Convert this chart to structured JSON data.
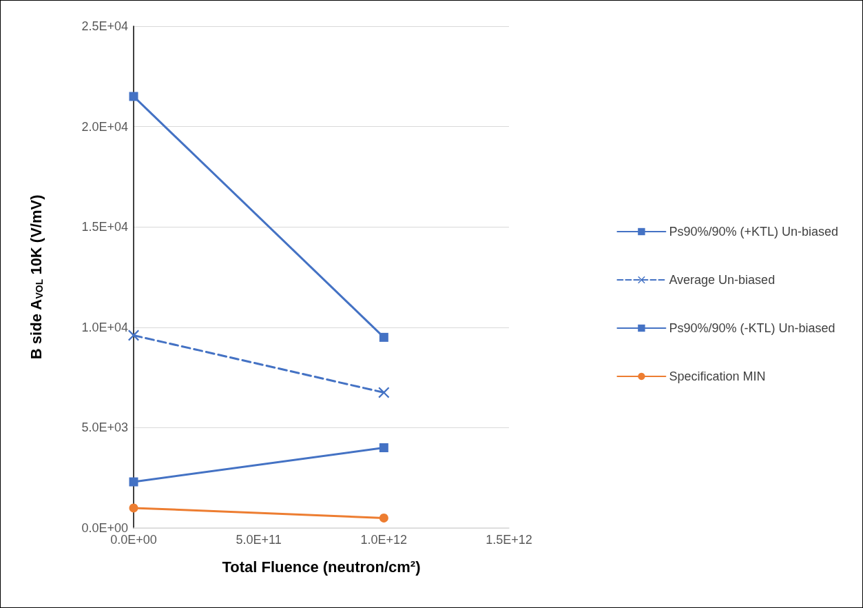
{
  "chart_data": {
    "type": "line",
    "ylabel": "B side A$_{VOL}$ 10K (V/mV)",
    "xlabel": "Total Fluence (neutron/cm²)",
    "x": [
      0,
      1000000000000
    ],
    "xlim": [
      0,
      1500000000000
    ],
    "xticks": [
      {
        "value": 0,
        "label": "0.0E+00"
      },
      {
        "value": 500000000000,
        "label": "5.0E+11"
      },
      {
        "value": 1000000000000,
        "label": "1.0E+12"
      },
      {
        "value": 1500000000000,
        "label": "1.5E+12"
      }
    ],
    "ylim": [
      0,
      25000
    ],
    "yticks": [
      {
        "value": 0,
        "label": "0.0E+00"
      },
      {
        "value": 5000,
        "label": "5.0E+03"
      },
      {
        "value": 10000,
        "label": "1.0E+04"
      },
      {
        "value": 15000,
        "label": "1.5E+04"
      },
      {
        "value": 20000,
        "label": "2.0E+04"
      },
      {
        "value": 25000,
        "label": "2.5E+04"
      }
    ],
    "grid": "y",
    "legend": "right",
    "series": [
      {
        "name": "Ps90%/90% (+KTL) Un-biased",
        "color": "#4472c4",
        "values": [
          21500,
          9500
        ],
        "marker": "square",
        "line_style": "solid"
      },
      {
        "name": "Average Un-biased",
        "color": "#4472c4",
        "values": [
          9600,
          6750
        ],
        "marker": "cross",
        "line_style": "dashed"
      },
      {
        "name": "Ps90%/90% (-KTL) Un-biased",
        "color": "#4472c4",
        "values": [
          2300,
          4000
        ],
        "marker": "square",
        "line_style": "solid"
      },
      {
        "name": "Specification MIN",
        "color": "#ed7d31",
        "values": [
          1000,
          500
        ],
        "marker": "circle",
        "line_style": "solid"
      }
    ]
  }
}
